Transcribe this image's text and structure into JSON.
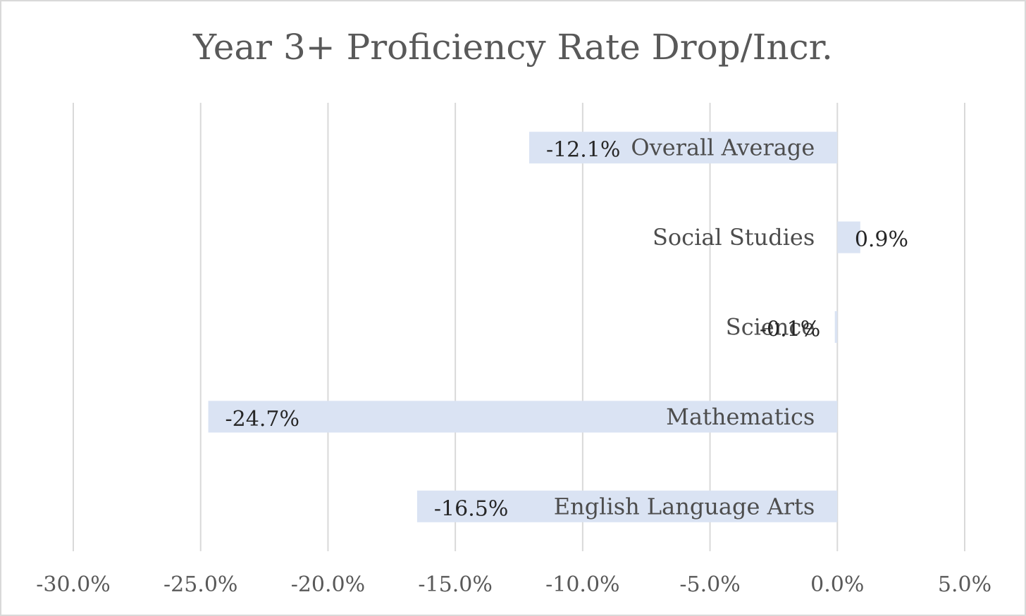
{
  "chart_data": {
    "type": "bar",
    "orientation": "horizontal",
    "title": "Year 3+ Proficiency Rate Drop/Incr.",
    "categories": [
      "Overall Average",
      "Social Studies",
      "Science",
      "Mathematics",
      "English Language Arts"
    ],
    "values": [
      -12.1,
      0.9,
      -0.1,
      -24.7,
      -16.5
    ],
    "data_labels": [
      "-12.1%",
      "0.9%",
      "-0.1%",
      "-24.7%",
      "-16.5%"
    ],
    "xlim": [
      -30,
      5
    ],
    "x_ticks": [
      -30,
      -25,
      -20,
      -15,
      -10,
      -5,
      0,
      5
    ],
    "x_tick_labels": [
      "-30.0%",
      "-25.0%",
      "-20.0%",
      "-15.0%",
      "-10.0%",
      "-5.0%",
      "0.0%",
      "5.0%"
    ],
    "grid": true,
    "colors": {
      "bar": "#dae3f3",
      "grid": "#d9d9d9",
      "title": "#595959",
      "tick": "#595959",
      "category": "#4d4d4d",
      "data_label": "#262626"
    }
  }
}
